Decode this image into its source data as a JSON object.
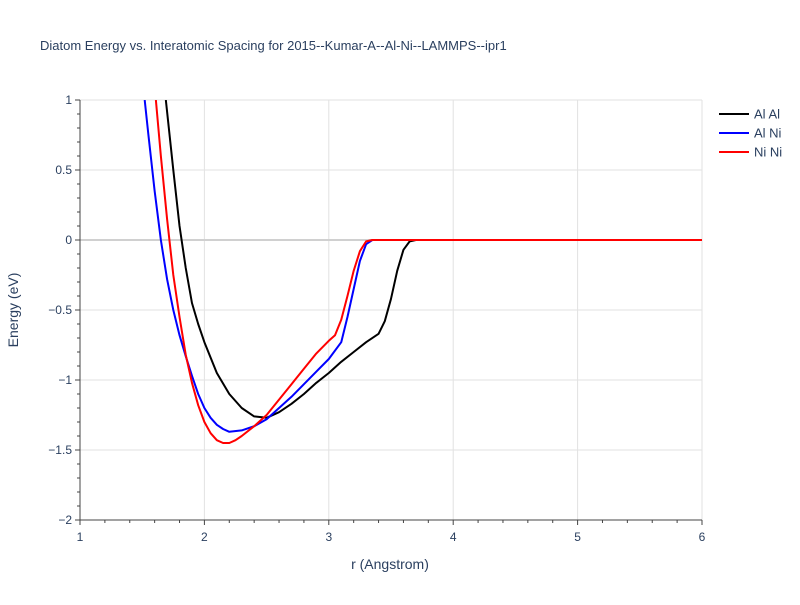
{
  "chart_data": {
    "type": "line",
    "title": "Diatom Energy vs. Interatomic Spacing for 2015--Kumar-A--Al-Ni--LAMMPS--ipr1",
    "xlabel": "r (Angstrom)",
    "ylabel": "Energy (eV)",
    "xlim": [
      1,
      6
    ],
    "ylim": [
      -2,
      1
    ],
    "xticks": [
      1,
      2,
      3,
      4,
      5,
      6
    ],
    "xtick_labels": [
      "1",
      "2",
      "3",
      "4",
      "5",
      "6"
    ],
    "yticks": [
      -2,
      -1.5,
      -1,
      -0.5,
      0,
      0.5,
      1
    ],
    "ytick_labels": [
      "−2",
      "−1.5",
      "−1",
      "−0.5",
      "0",
      "0.5",
      "1"
    ],
    "grid": true,
    "legend_position": "top-right",
    "series": [
      {
        "name": "Al Al",
        "color": "#000000",
        "x": [
          1.69,
          1.75,
          1.8,
          1.85,
          1.9,
          1.95,
          2.0,
          2.1,
          2.2,
          2.3,
          2.4,
          2.5,
          2.6,
          2.7,
          2.8,
          2.9,
          3.0,
          3.1,
          3.2,
          3.3,
          3.4,
          3.45,
          3.5,
          3.55,
          3.6,
          3.65,
          3.7,
          4.0,
          5.0,
          6.0
        ],
        "y": [
          1.0,
          0.5,
          0.1,
          -0.2,
          -0.45,
          -0.6,
          -0.73,
          -0.95,
          -1.1,
          -1.2,
          -1.26,
          -1.27,
          -1.23,
          -1.17,
          -1.1,
          -1.02,
          -0.95,
          -0.87,
          -0.8,
          -0.73,
          -0.67,
          -0.58,
          -0.42,
          -0.22,
          -0.07,
          -0.01,
          0.0,
          0.0,
          0.0,
          0.0
        ]
      },
      {
        "name": "Al Ni",
        "color": "#0000ff",
        "x": [
          1.52,
          1.55,
          1.6,
          1.65,
          1.7,
          1.75,
          1.8,
          1.85,
          1.9,
          1.95,
          2.0,
          2.05,
          2.1,
          2.15,
          2.2,
          2.3,
          2.4,
          2.5,
          2.6,
          2.7,
          2.8,
          2.9,
          3.0,
          3.1,
          3.15,
          3.2,
          3.25,
          3.3,
          3.35,
          3.4,
          4.0,
          5.0,
          6.0
        ],
        "y": [
          1.0,
          0.75,
          0.35,
          0.0,
          -0.28,
          -0.5,
          -0.68,
          -0.83,
          -0.97,
          -1.1,
          -1.2,
          -1.27,
          -1.32,
          -1.35,
          -1.37,
          -1.36,
          -1.33,
          -1.28,
          -1.2,
          -1.12,
          -1.03,
          -0.94,
          -0.85,
          -0.73,
          -0.55,
          -0.35,
          -0.15,
          -0.03,
          0.0,
          0.0,
          0.0,
          0.0,
          0.0
        ]
      },
      {
        "name": "Ni Ni",
        "color": "#ff0000",
        "x": [
          1.61,
          1.65,
          1.7,
          1.75,
          1.8,
          1.85,
          1.9,
          1.95,
          2.0,
          2.05,
          2.1,
          2.15,
          2.2,
          2.25,
          2.3,
          2.4,
          2.5,
          2.6,
          2.7,
          2.8,
          2.9,
          3.0,
          3.05,
          3.1,
          3.15,
          3.2,
          3.25,
          3.3,
          3.35,
          3.4,
          4.0,
          5.0,
          6.0
        ],
        "y": [
          1.0,
          0.6,
          0.15,
          -0.25,
          -0.55,
          -0.82,
          -1.02,
          -1.18,
          -1.3,
          -1.38,
          -1.43,
          -1.45,
          -1.45,
          -1.43,
          -1.4,
          -1.33,
          -1.25,
          -1.14,
          -1.03,
          -0.92,
          -0.81,
          -0.72,
          -0.68,
          -0.57,
          -0.4,
          -0.22,
          -0.08,
          -0.01,
          0.0,
          0.0,
          0.0,
          0.0,
          0.0
        ]
      }
    ]
  }
}
